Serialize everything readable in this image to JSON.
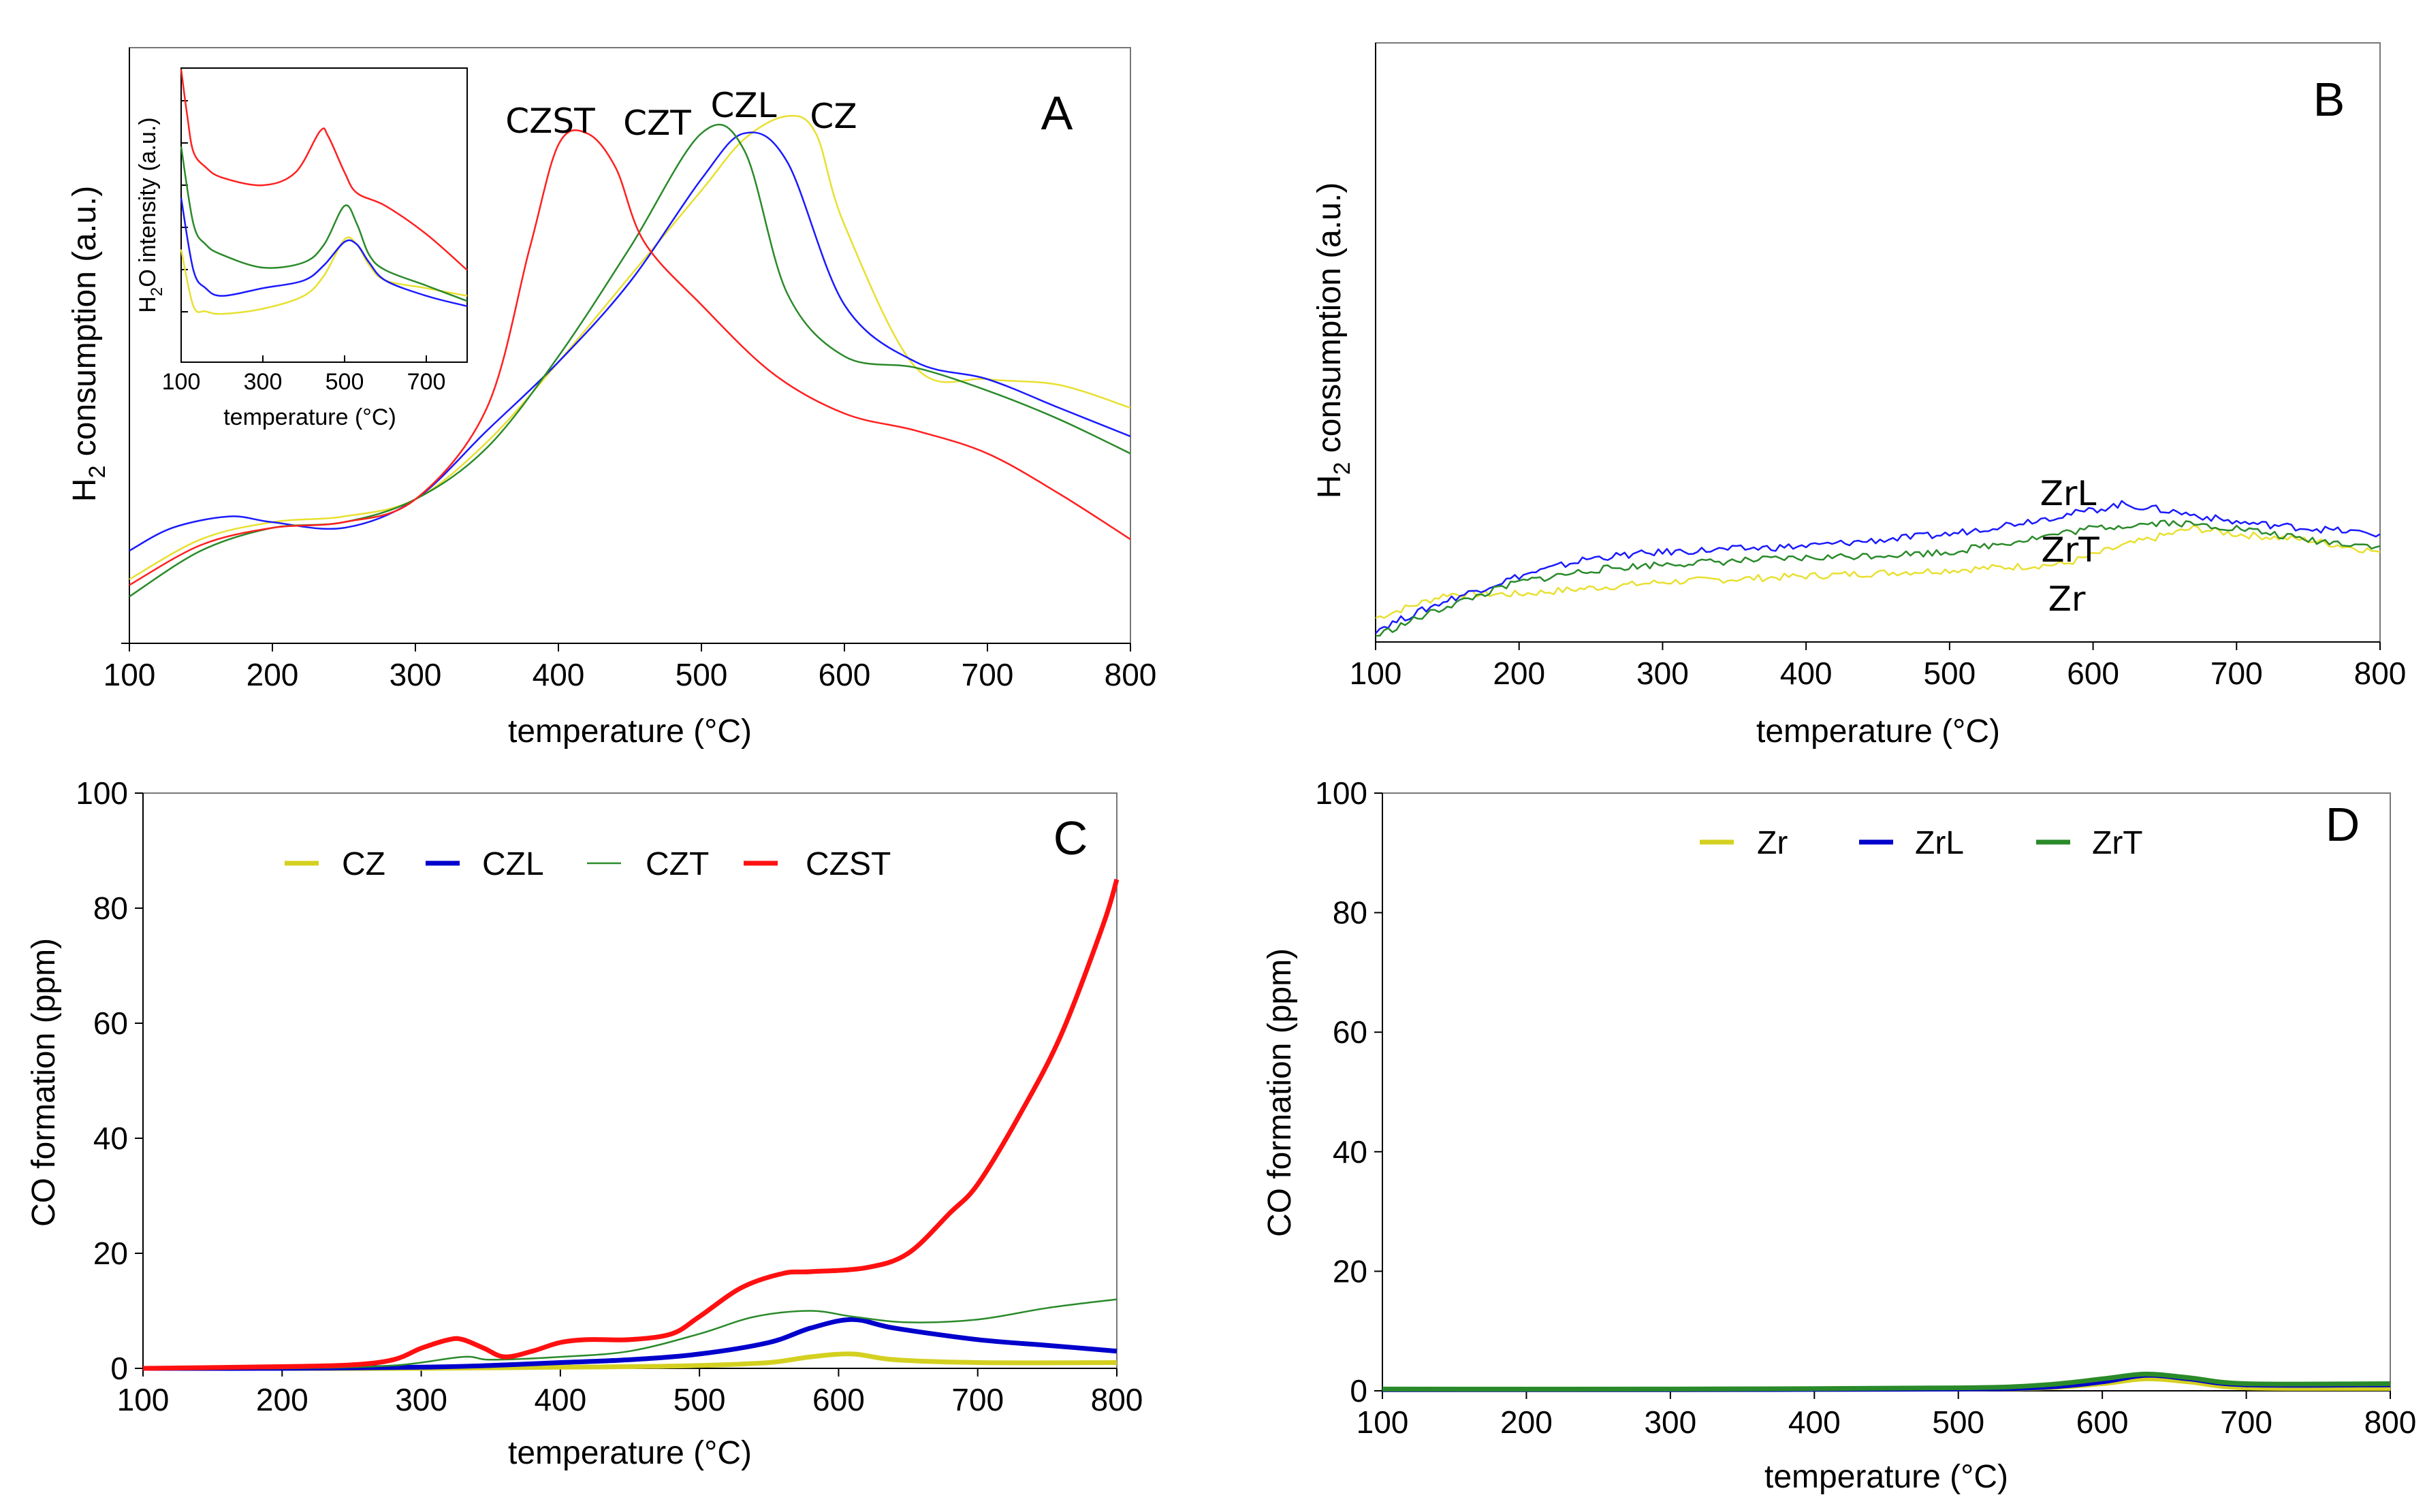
{
  "chart_data": [
    {
      "panel": "A",
      "type": "line",
      "xlabel": "temperature (°C)",
      "ylabel_main": "H",
      "ylabel_sub": "2",
      "ylabel_rest": " consumption (a.u.)",
      "xlim": [
        100,
        800
      ],
      "ylim": [
        0,
        100
      ],
      "xticks": [
        "100",
        "200",
        "300",
        "400",
        "500",
        "600",
        "700",
        "800"
      ],
      "labels": [
        {
          "text": "CZST",
          "color": "#000000"
        },
        {
          "text": "CZT",
          "color": "#000000"
        },
        {
          "text": "CZL",
          "color": "#000000"
        },
        {
          "text": "CZ",
          "color": "#000000"
        }
      ],
      "series": [
        {
          "name": "CZ",
          "color": "#e8e030",
          "x": [
            100,
            150,
            200,
            250,
            300,
            350,
            400,
            450,
            500,
            530,
            560,
            580,
            600,
            650,
            700,
            750,
            800
          ],
          "y": [
            10,
            17,
            20,
            21,
            24,
            34,
            48,
            63,
            78,
            87,
            91,
            88,
            72,
            47,
            45,
            44,
            40
          ]
        },
        {
          "name": "CZL",
          "color": "#1a1aff",
          "x": [
            100,
            130,
            170,
            200,
            250,
            300,
            350,
            400,
            450,
            500,
            530,
            560,
            600,
            650,
            700,
            750,
            800
          ],
          "y": [
            15,
            19,
            21,
            20,
            19,
            24,
            36,
            48,
            62,
            80,
            88,
            83,
            58,
            48,
            45,
            40,
            35
          ]
        },
        {
          "name": "CZT",
          "color": "#2a8a2a",
          "x": [
            100,
            150,
            200,
            250,
            300,
            350,
            400,
            450,
            500,
            530,
            560,
            600,
            650,
            700,
            750,
            800
          ],
          "y": [
            7,
            15,
            19,
            20,
            24,
            33,
            49,
            68,
            88,
            85,
            60,
            49,
            47,
            43,
            38,
            32
          ]
        },
        {
          "name": "CZST",
          "color": "#ff2020",
          "x": [
            100,
            150,
            200,
            250,
            300,
            350,
            380,
            400,
            420,
            440,
            460,
            500,
            550,
            600,
            650,
            700,
            750,
            800
          ],
          "y": [
            9,
            16,
            19,
            20,
            24,
            40,
            68,
            86,
            88,
            82,
            69,
            58,
            46,
            39,
            36,
            32,
            25,
            17
          ]
        }
      ],
      "inset": {
        "xlabel": "temperature (°C)",
        "ylabel_main": "H",
        "ylabel_sub": "2",
        "ylabel_rest": "O intensity (a.u.)",
        "xlim": [
          100,
          800
        ],
        "ylim": [
          0,
          100
        ],
        "xticks": [
          "100",
          "300",
          "500",
          "700"
        ],
        "series": [
          {
            "name": "CZ",
            "color": "#e8e030",
            "x": [
              100,
              130,
              160,
              200,
              300,
              400,
              450,
              500,
              530,
              560,
              600,
              700,
              800
            ],
            "y": [
              30,
              8,
              6,
              5,
              7,
              12,
              20,
              34,
              32,
              24,
              18,
              15,
              12
            ]
          },
          {
            "name": "CZL",
            "color": "#1a1aff",
            "x": [
              100,
              130,
              160,
              200,
              300,
              400,
              450,
              500,
              530,
              560,
              600,
              700,
              800
            ],
            "y": [
              50,
              22,
              15,
              12,
              15,
              18,
              24,
              33,
              32,
              25,
              18,
              12,
              8
            ]
          },
          {
            "name": "CZT",
            "color": "#2a8a2a",
            "x": [
              100,
              130,
              160,
              200,
              300,
              400,
              450,
              500,
              530,
              560,
              600,
              700,
              800
            ],
            "y": [
              70,
              40,
              32,
              28,
              23,
              25,
              32,
              47,
              40,
              28,
              22,
              16,
              10
            ]
          },
          {
            "name": "CZST",
            "color": "#ff2020",
            "x": [
              100,
              115,
              130,
              160,
              200,
              300,
              380,
              440,
              460,
              500,
              530,
              600,
              700,
              800
            ],
            "y": [
              100,
              82,
              68,
              62,
              58,
              55,
              60,
              76,
              74,
              60,
              52,
              47,
              36,
              22
            ]
          }
        ]
      }
    },
    {
      "panel": "B",
      "type": "line",
      "xlabel": "temperature (°C)",
      "ylabel_main": "H",
      "ylabel_sub": "2",
      "ylabel_rest": " consumption (a.u.)",
      "xlim": [
        100,
        800
      ],
      "ylim": [
        0,
        100
      ],
      "xticks": [
        "100",
        "200",
        "300",
        "400",
        "500",
        "600",
        "700",
        "800"
      ],
      "labels": [
        {
          "text": "ZrL",
          "color": "#000000"
        },
        {
          "text": "ZrT",
          "color": "#000000"
        },
        {
          "text": "Zr",
          "color": "#000000"
        }
      ],
      "series": [
        {
          "name": "Zr",
          "color": "#e8e030",
          "x": [
            100,
            150,
            200,
            300,
            400,
            500,
            580,
            620,
            670,
            700,
            750,
            800
          ],
          "y": [
            4,
            8,
            8,
            10,
            11,
            12,
            13,
            16,
            19,
            18,
            17,
            15
          ]
        },
        {
          "name": "ZrL",
          "color": "#1a1aff",
          "x": [
            100,
            150,
            200,
            250,
            300,
            400,
            500,
            600,
            620,
            650,
            700,
            750,
            800
          ],
          "y": [
            2,
            7,
            11,
            14,
            15,
            16,
            18,
            22,
            23,
            22,
            20,
            19,
            18
          ]
        },
        {
          "name": "ZrT",
          "color": "#2a8a2a",
          "x": [
            100,
            150,
            200,
            250,
            300,
            400,
            500,
            600,
            650,
            700,
            750,
            800
          ],
          "y": [
            1,
            6,
            10,
            12,
            13,
            14,
            15,
            19,
            20,
            19,
            17,
            16
          ]
        }
      ]
    },
    {
      "panel": "C",
      "type": "line",
      "xlabel": "temperature (°C)",
      "ylabel": "CO formation (ppm)",
      "xlim": [
        100,
        800
      ],
      "ylim": [
        0,
        100
      ],
      "xticks": [
        "100",
        "200",
        "300",
        "400",
        "500",
        "600",
        "700",
        "800"
      ],
      "yticks": [
        "0",
        "20",
        "40",
        "60",
        "80",
        "100"
      ],
      "legend": [
        "CZ",
        "CZL",
        "CZT",
        "CZST"
      ],
      "series": [
        {
          "name": "CZ",
          "color": "#d4d020",
          "x": [
            100,
            200,
            300,
            400,
            450,
            500,
            550,
            580,
            610,
            640,
            700,
            800
          ],
          "y": [
            0,
            0,
            0,
            0.2,
            0.3,
            0.5,
            1,
            2,
            2.5,
            1.5,
            1,
            1
          ]
        },
        {
          "name": "CZL",
          "color": "#0000cc",
          "x": [
            100,
            200,
            300,
            350,
            400,
            450,
            500,
            550,
            580,
            610,
            640,
            700,
            750,
            800
          ],
          "y": [
            0,
            0,
            0.2,
            0.5,
            1,
            1.5,
            2.5,
            4.5,
            7,
            8.5,
            7,
            5,
            4,
            3
          ]
        },
        {
          "name": "CZT",
          "color": "#2a8a2a",
          "x": [
            100,
            200,
            280,
            330,
            350,
            400,
            450,
            500,
            540,
            580,
            610,
            650,
            700,
            750,
            800
          ],
          "y": [
            0,
            0,
            0.5,
            2,
            1.5,
            2,
            3,
            6,
            9,
            10,
            9,
            8,
            8.5,
            10.5,
            12
          ]
        },
        {
          "name": "CZST",
          "color": "#ff1010",
          "x": [
            100,
            200,
            250,
            280,
            300,
            320,
            330,
            345,
            360,
            380,
            400,
            420,
            450,
            480,
            500,
            530,
            560,
            580,
            620,
            650,
            680,
            700,
            730,
            760,
            790,
            800
          ],
          "y": [
            0,
            0.3,
            0.6,
            1.5,
            3.5,
            5,
            5,
            3.5,
            2,
            3,
            4.5,
            5,
            5,
            6,
            9,
            14,
            16.5,
            16.8,
            17.5,
            20,
            27,
            32,
            44,
            58,
            77,
            85
          ]
        }
      ]
    },
    {
      "panel": "D",
      "type": "line",
      "xlabel": "temperature (°C)",
      "ylabel": "CO formation (ppm)",
      "xlim": [
        100,
        800
      ],
      "ylim": [
        0,
        100
      ],
      "xticks": [
        "100",
        "200",
        "300",
        "400",
        "500",
        "600",
        "700",
        "800"
      ],
      "yticks": [
        "0",
        "20",
        "40",
        "60",
        "80",
        "100"
      ],
      "legend": [
        "Zr",
        "ZrL",
        "ZrT"
      ],
      "series": [
        {
          "name": "Zr",
          "color": "#d4d020",
          "x": [
            100,
            300,
            500,
            560,
            600,
            630,
            660,
            700,
            800
          ],
          "y": [
            0.2,
            0.2,
            0.3,
            0.5,
            1.2,
            2,
            1.5,
            0.5,
            0.4
          ]
        },
        {
          "name": "ZrL",
          "color": "#0000cc",
          "x": [
            100,
            300,
            500,
            560,
            600,
            630,
            660,
            700,
            800
          ],
          "y": [
            0.2,
            0.2,
            0.3,
            0.6,
            1.5,
            2.6,
            2,
            1,
            1
          ]
        },
        {
          "name": "ZrT",
          "color": "#2a8a2a",
          "x": [
            100,
            300,
            500,
            560,
            600,
            630,
            660,
            700,
            800
          ],
          "y": [
            0.3,
            0.3,
            0.5,
            1,
            2,
            2.8,
            2.2,
            1.2,
            1.2
          ]
        }
      ]
    }
  ]
}
